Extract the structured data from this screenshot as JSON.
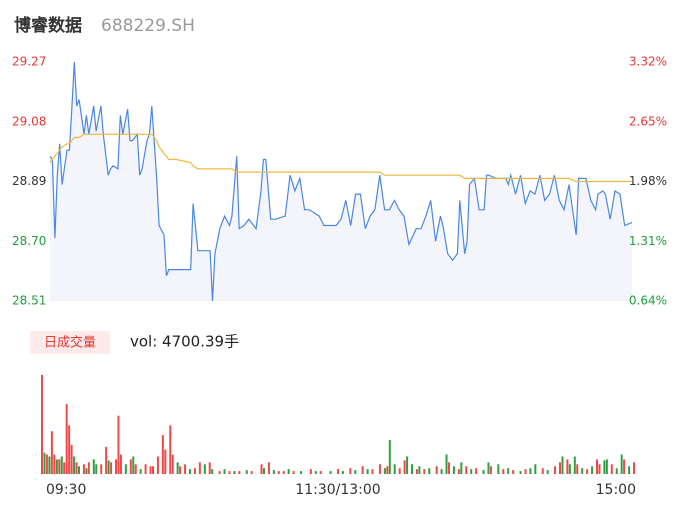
{
  "chart_data": [
    {
      "type": "line",
      "title": "博睿数据",
      "subtitle": "688229.SH",
      "x": [
        0,
        1,
        2,
        3,
        4,
        5,
        7,
        8,
        9,
        10,
        11,
        12,
        14,
        15,
        16,
        18,
        19,
        21,
        22,
        24,
        25,
        26,
        28,
        29,
        30,
        32,
        33,
        34,
        36,
        37,
        38,
        40,
        41,
        42,
        44,
        45,
        47,
        48,
        49,
        52,
        58,
        59,
        61,
        62,
        64,
        66,
        67,
        68,
        70,
        72,
        74,
        75,
        77,
        78,
        80,
        82,
        85,
        87,
        88,
        89,
        91,
        93,
        97,
        99,
        101,
        103,
        105,
        107,
        111,
        113,
        118,
        120,
        122,
        124,
        126,
        128,
        130,
        132,
        134,
        136,
        138,
        140,
        142,
        144,
        146,
        148,
        151,
        153,
        155,
        157,
        159,
        161,
        162,
        164,
        166,
        168,
        169,
        171,
        172,
        173,
        175,
        177,
        179,
        180,
        181,
        184,
        186,
        188,
        189,
        190,
        192,
        194,
        196,
        198,
        200,
        202,
        204,
        206,
        208,
        210,
        212,
        214,
        217,
        218,
        221,
        223,
        225,
        226,
        228,
        229,
        231,
        233,
        235,
        237,
        240
      ],
      "xlim": [
        0,
        240
      ],
      "series": [
        {
          "color": "#4a86e8",
          "values": [
            28.97,
            28.96,
            28.71,
            28.91,
            29.01,
            28.88,
            28.99,
            28.99,
            29.12,
            29.27,
            29.13,
            29.15,
            29.04,
            29.1,
            29.04,
            29.13,
            29.05,
            29.13,
            29.04,
            28.91,
            28.93,
            28.94,
            28.93,
            29.1,
            29.04,
            29.12,
            29.02,
            29.02,
            29.04,
            28.91,
            28.93,
            29.02,
            29.04,
            29.13,
            28.9,
            28.75,
            28.72,
            28.59,
            28.61,
            28.61,
            28.61,
            28.82,
            28.67,
            28.67,
            28.67,
            28.67,
            28.51,
            28.66,
            28.74,
            28.78,
            28.75,
            28.78,
            28.97,
            28.74,
            28.75,
            28.77,
            28.74,
            28.86,
            28.96,
            28.96,
            28.77,
            28.77,
            28.78,
            28.91,
            28.86,
            28.9,
            28.8,
            28.8,
            28.78,
            28.75,
            28.75,
            28.77,
            28.83,
            28.75,
            28.85,
            28.85,
            28.74,
            28.78,
            28.8,
            28.91,
            28.8,
            28.8,
            28.83,
            28.8,
            28.78,
            28.69,
            28.74,
            28.74,
            28.78,
            28.83,
            28.7,
            28.78,
            28.75,
            28.66,
            28.64,
            28.66,
            28.83,
            28.66,
            28.7,
            28.88,
            28.9,
            28.8,
            28.8,
            28.91,
            28.91,
            28.9,
            28.9,
            28.9,
            28.88,
            28.91,
            28.85,
            28.91,
            28.82,
            28.86,
            28.85,
            28.91,
            28.83,
            28.85,
            28.91,
            28.83,
            28.8,
            28.88,
            28.72,
            28.9,
            28.9,
            28.83,
            28.8,
            28.85,
            28.86,
            28.85,
            28.77,
            28.86,
            28.85,
            28.75,
            28.76
          ],
          "area": "#f3f5fb"
        },
        {
          "color": "#f2b93b",
          "values": [
            28.95,
            28.96,
            28.97,
            28.98,
            28.99,
            29.0,
            29.01,
            29.01,
            29.02,
            29.03,
            29.03,
            29.03,
            29.04,
            29.04,
            29.04,
            29.04,
            29.04,
            29.04,
            29.04,
            29.04,
            29.04,
            29.04,
            29.04,
            29.04,
            29.04,
            29.04,
            29.04,
            29.04,
            29.04,
            29.04,
            29.04,
            29.04,
            29.04,
            29.04,
            29.02,
            29.0,
            28.98,
            28.97,
            28.96,
            28.96,
            28.95,
            28.94,
            28.93,
            28.93,
            28.93,
            28.93,
            28.93,
            28.93,
            28.93,
            28.93,
            28.93,
            28.93,
            28.92,
            28.92,
            28.92,
            28.92,
            28.92,
            28.92,
            28.92,
            28.92,
            28.92,
            28.92,
            28.92,
            28.92,
            28.92,
            28.92,
            28.92,
            28.92,
            28.92,
            28.92,
            28.92,
            28.92,
            28.92,
            28.92,
            28.92,
            28.92,
            28.92,
            28.92,
            28.92,
            28.92,
            28.91,
            28.91,
            28.91,
            28.91,
            28.91,
            28.91,
            28.91,
            28.91,
            28.91,
            28.91,
            28.91,
            28.91,
            28.91,
            28.91,
            28.91,
            28.91,
            28.91,
            28.9,
            28.9,
            28.9,
            28.9,
            28.9,
            28.9,
            28.9,
            28.9,
            28.9,
            28.9,
            28.9,
            28.9,
            28.9,
            28.9,
            28.9,
            28.9,
            28.9,
            28.9,
            28.9,
            28.9,
            28.9,
            28.9,
            28.9,
            28.9,
            28.9,
            28.89,
            28.89,
            28.89,
            28.89,
            28.89,
            28.89,
            28.89,
            28.89,
            28.89,
            28.89,
            28.89,
            28.89,
            28.89
          ]
        }
      ],
      "ylim": [
        28.51,
        29.27
      ],
      "yticks": [
        29.27,
        29.08,
        28.89,
        {
          "value": 28.7,
          "label": "28.70"
        },
        28.51
      ],
      "y2lim": [
        0.64,
        3.32
      ],
      "y2ticks": [
        {
          "value": 3.32,
          "label": "3.32%"
        },
        {
          "value": 2.65,
          "label": "2.65%"
        },
        {
          "value": 1.98,
          "label": "1.98%"
        },
        {
          "value": 1.31,
          "label": "1.31%"
        },
        {
          "value": 0.64,
          "label": "0.64%"
        }
      ],
      "tick_colors": [
        "#e53935",
        "#e53935",
        "#333333",
        "#1e9e3e",
        "#1e9e3e"
      ]
    },
    {
      "type": "bar",
      "title": "日成交量",
      "annotation": "vol: 4700.39手",
      "x": [
        0,
        1,
        2,
        3,
        4,
        5,
        6,
        7,
        8,
        9,
        10,
        11,
        12,
        13,
        14,
        15,
        17,
        18,
        19,
        21,
        22,
        24,
        26,
        27,
        28,
        30,
        31,
        32,
        34,
        36,
        37,
        38,
        40,
        42,
        44,
        45,
        47,
        49,
        50,
        52,
        53,
        55,
        56,
        58,
        60,
        62,
        64,
        66,
        68,
        69,
        72,
        74,
        76,
        78,
        80,
        83,
        85,
        89,
        90,
        92,
        94,
        96,
        98,
        100,
        102,
        105,
        109,
        111,
        113,
        117,
        120,
        122,
        125,
        127,
        130,
        132,
        134,
        137,
        139,
        140,
        141,
        143,
        145,
        147,
        148,
        150,
        152,
        153,
        155,
        157,
        160,
        162,
        164,
        165,
        167,
        169,
        170,
        172,
        174,
        176,
        179,
        181,
        182,
        185,
        187,
        189,
        191,
        194,
        196,
        198,
        200,
        203,
        205,
        208,
        210,
        211,
        213,
        214,
        216,
        217,
        219,
        221,
        223,
        225,
        226,
        228,
        229,
        231,
        233,
        235,
        236,
        238,
        240
      ],
      "xlim": [
        0,
        240
      ],
      "xticks": [
        {
          "value": 0,
          "label": "09:30"
        },
        {
          "value": 120,
          "label": "11:30/13:00"
        },
        {
          "value": 240,
          "label": "15:00"
        }
      ],
      "values": [
        102,
        22,
        20,
        18,
        44,
        20,
        15,
        15,
        18,
        12,
        72,
        50,
        30,
        18,
        12,
        8,
        10,
        6,
        12,
        15,
        10,
        10,
        28,
        14,
        12,
        15,
        60,
        20,
        10,
        15,
        18,
        10,
        5,
        10,
        8,
        8,
        18,
        40,
        25,
        50,
        20,
        12,
        8,
        10,
        5,
        6,
        12,
        10,
        12,
        5,
        3,
        5,
        3,
        3,
        3,
        4,
        3,
        10,
        6,
        12,
        4,
        3,
        3,
        5,
        3,
        3,
        5,
        3,
        3,
        3,
        5,
        3,
        6,
        4,
        8,
        5,
        5,
        10,
        6,
        8,
        35,
        10,
        6,
        14,
        18,
        10,
        5,
        8,
        5,
        6,
        8,
        5,
        20,
        12,
        8,
        5,
        12,
        8,
        5,
        6,
        4,
        12,
        8,
        10,
        5,
        6,
        4,
        3,
        5,
        6,
        10,
        6,
        4,
        8,
        12,
        18,
        15,
        10,
        18,
        10,
        6,
        5,
        8,
        15,
        10,
        14,
        15,
        10,
        6,
        20,
        15,
        8,
        12
      ],
      "colors": [
        "#f04848",
        "#2ea043",
        "#f04848",
        "#2ea043",
        "#f04848",
        "#f04848",
        "#2ea043",
        "#f04848",
        "#2ea043",
        "#f04848",
        "#f04848",
        "#f04848",
        "#f04848",
        "#2ea043",
        "#f04848",
        "#2ea043",
        "#f04848",
        "#2ea043",
        "#f04848",
        "#2ea043",
        "#2ea043",
        "#f04848",
        "#f04848",
        "#2ea043",
        "#f04848",
        "#f04848",
        "#f04848",
        "#f04848",
        "#2ea043",
        "#f04848",
        "#2ea043",
        "#f04848",
        "#2ea043",
        "#f04848",
        "#f04848",
        "#f04848",
        "#f04848",
        "#f04848",
        "#f04848",
        "#f04848",
        "#f04848",
        "#2ea043",
        "#f04848",
        "#f04848",
        "#2ea043",
        "#f04848",
        "#f04848",
        "#2ea043",
        "#f04848",
        "#2ea043",
        "#f04848",
        "#2ea043",
        "#f04848",
        "#2ea043",
        "#f04848",
        "#2ea043",
        "#f04848",
        "#f04848",
        "#2ea043",
        "#f04848",
        "#2ea043",
        "#f04848",
        "#f04848",
        "#2ea043",
        "#f04848",
        "#2ea043",
        "#f04848",
        "#2ea043",
        "#f04848",
        "#2ea043",
        "#f04848",
        "#2ea043",
        "#f04848",
        "#2ea043",
        "#f04848",
        "#2ea043",
        "#f04848",
        "#f04848",
        "#2ea043",
        "#f04848",
        "#2ea043",
        "#2ea043",
        "#f04848",
        "#f04848",
        "#2ea043",
        "#2ea043",
        "#f04848",
        "#2ea043",
        "#f04848",
        "#2ea043",
        "#f04848",
        "#2ea043",
        "#2ea043",
        "#f04848",
        "#2ea043",
        "#f04848",
        "#2ea043",
        "#f04848",
        "#2ea043",
        "#f04848",
        "#2ea043",
        "#2ea043",
        "#f04848",
        "#2ea043",
        "#f04848",
        "#2ea043",
        "#f04848",
        "#2ea043",
        "#f04848",
        "#2ea043",
        "#2ea043",
        "#f04848",
        "#2ea043",
        "#f04848",
        "#f04848",
        "#2ea043",
        "#f04848",
        "#2ea043",
        "#2ea043",
        "#f04848",
        "#2ea043",
        "#f04848",
        "#2ea043",
        "#f04848",
        "#f04848",
        "#2ea043",
        "#2ea043",
        "#f04848",
        "#2ea043",
        "#2ea043",
        "#f04848",
        "#2ea043",
        "#f04848"
      ],
      "ylim": [
        0,
        105
      ]
    }
  ]
}
